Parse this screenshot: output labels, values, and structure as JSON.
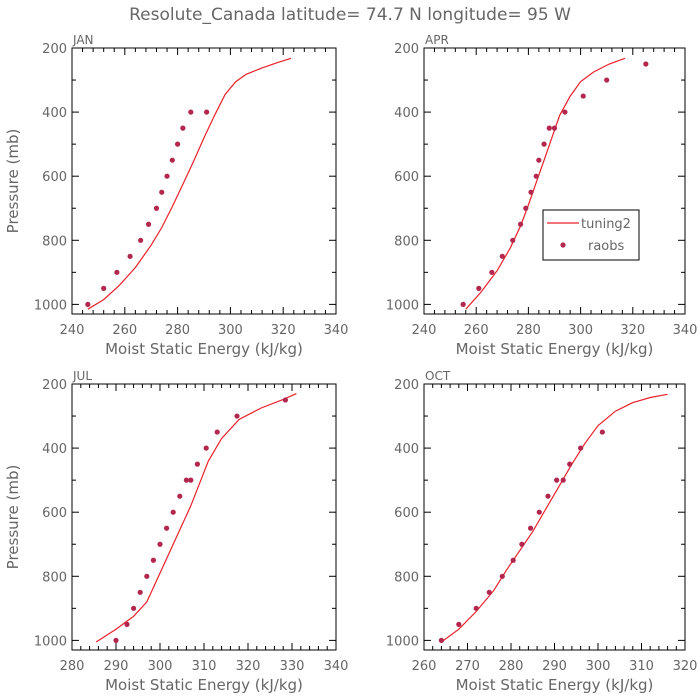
{
  "title": "Resolute_Canada  latitude= 74.7 N longitude= 95 W",
  "legend": {
    "line_label": "tuning2",
    "dot_label": "raobs"
  },
  "colors": {
    "model": "#e8202a",
    "obs": "#b3264d",
    "text": "#666666"
  },
  "chart_data": [
    {
      "type": "line",
      "panel": "JAN",
      "title": "JAN",
      "xlabel": "Moist Static Energy (kJ/kg)",
      "ylabel": "Pressure (mb)",
      "xlim": [
        240,
        340
      ],
      "ylim": [
        1030,
        200
      ],
      "xticks": [
        240,
        260,
        280,
        300,
        320,
        340
      ],
      "yticks": [
        200,
        400,
        600,
        800,
        1000
      ],
      "series": [
        {
          "name": "tuning2",
          "kind": "line",
          "x": [
            246,
            252,
            258,
            264,
            270,
            274,
            278,
            282,
            286,
            290,
            294,
            298,
            302,
            306,
            312,
            318,
            323
          ],
          "y": [
            1015,
            985,
            940,
            885,
            815,
            760,
            695,
            625,
            555,
            480,
            410,
            345,
            305,
            282,
            262,
            245,
            232
          ]
        },
        {
          "name": "raobs",
          "kind": "scatter",
          "x": [
            246,
            252,
            257,
            262,
            266,
            269,
            272,
            274,
            276,
            278,
            280,
            282,
            285,
            291
          ],
          "y": [
            1000,
            950,
            900,
            850,
            800,
            750,
            700,
            650,
            600,
            550,
            500,
            450,
            400,
            400
          ]
        }
      ]
    },
    {
      "type": "line",
      "panel": "APR",
      "title": "APR",
      "xlabel": "Moist Static Energy (kJ/kg)",
      "ylabel": "",
      "xlim": [
        240,
        340
      ],
      "ylim": [
        1030,
        200
      ],
      "xticks": [
        240,
        260,
        280,
        300,
        320,
        340
      ],
      "yticks": [
        200,
        400,
        600,
        800,
        1000
      ],
      "series": [
        {
          "name": "tuning2",
          "kind": "line",
          "x": [
            256,
            262,
            268,
            273,
            277,
            280,
            283,
            286,
            289,
            292,
            296,
            300,
            305,
            311,
            317
          ],
          "y": [
            1015,
            960,
            895,
            825,
            755,
            690,
            620,
            550,
            480,
            410,
            350,
            305,
            275,
            250,
            232
          ]
        },
        {
          "name": "raobs",
          "kind": "scatter",
          "x": [
            255,
            261,
            266,
            270,
            274,
            277,
            279,
            281,
            283,
            284,
            286,
            288,
            290,
            294,
            301,
            310,
            325
          ],
          "y": [
            1000,
            950,
            900,
            850,
            800,
            750,
            700,
            650,
            600,
            550,
            500,
            450,
            450,
            400,
            350,
            300,
            250
          ]
        }
      ]
    },
    {
      "type": "line",
      "panel": "JUL",
      "title": "JUL",
      "xlabel": "Moist Static Energy (kJ/kg)",
      "ylabel": "Pressure (mb)",
      "xlim": [
        280,
        340
      ],
      "ylim": [
        1030,
        200
      ],
      "xticks": [
        280,
        290,
        300,
        310,
        320,
        330,
        340
      ],
      "yticks": [
        200,
        400,
        600,
        800,
        1000
      ],
      "series": [
        {
          "name": "tuning2",
          "kind": "line",
          "x": [
            285.5,
            290,
            294,
            297,
            299,
            301,
            303,
            305,
            307,
            309,
            311,
            314,
            318,
            323,
            328,
            331
          ],
          "y": [
            1005,
            965,
            925,
            880,
            820,
            760,
            700,
            640,
            580,
            510,
            440,
            370,
            310,
            275,
            248,
            230
          ]
        },
        {
          "name": "raobs",
          "kind": "scatter",
          "x": [
            290,
            292.5,
            294,
            295.5,
            297,
            298.5,
            300,
            301.5,
            303,
            304.5,
            306,
            307,
            308.5,
            310.5,
            313,
            317.5,
            328.5
          ],
          "y": [
            1000,
            950,
            900,
            850,
            800,
            750,
            700,
            650,
            600,
            550,
            500,
            500,
            450,
            400,
            350,
            300,
            250
          ]
        }
      ]
    },
    {
      "type": "line",
      "panel": "OCT",
      "title": "OCT",
      "xlabel": "Moist Static Energy (kJ/kg)",
      "ylabel": "",
      "xlim": [
        260,
        320
      ],
      "ylim": [
        1030,
        200
      ],
      "xticks": [
        260,
        270,
        280,
        290,
        300,
        310,
        320
      ],
      "yticks": [
        200,
        400,
        600,
        800,
        1000
      ],
      "series": [
        {
          "name": "tuning2",
          "kind": "line",
          "x": [
            264,
            268,
            272,
            276,
            279,
            282,
            285,
            288,
            291,
            294,
            297,
            300,
            304,
            308,
            312,
            316
          ],
          "y": [
            1005,
            965,
            910,
            845,
            780,
            720,
            660,
            590,
            520,
            450,
            385,
            330,
            285,
            258,
            242,
            232
          ]
        },
        {
          "name": "raobs",
          "kind": "scatter",
          "x": [
            264,
            268,
            272,
            275,
            278,
            280.5,
            282.5,
            284.5,
            286.5,
            288.5,
            290.5,
            292,
            293.5,
            296,
            301
          ],
          "y": [
            1000,
            950,
            900,
            850,
            800,
            750,
            700,
            650,
            600,
            550,
            500,
            500,
            450,
            400,
            350
          ]
        }
      ]
    }
  ]
}
